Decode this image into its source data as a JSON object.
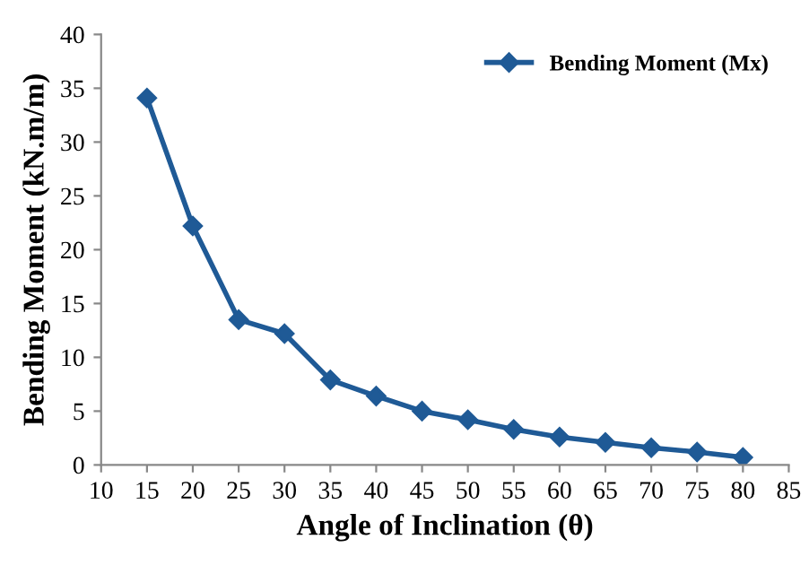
{
  "chart_data": {
    "type": "line",
    "xlabel": "Angle of Inclination (θ)",
    "ylabel": "Bending Moment (kN.m/m)",
    "x": [
      15,
      20,
      25,
      30,
      35,
      40,
      45,
      50,
      55,
      60,
      65,
      70,
      75,
      80
    ],
    "series": [
      {
        "name": "Bending Moment (Mx)",
        "color": "#1f5a96",
        "values": [
          34.1,
          22.2,
          13.5,
          12.2,
          7.9,
          6.4,
          5.0,
          4.2,
          3.3,
          2.6,
          2.1,
          1.6,
          1.2,
          0.7
        ]
      }
    ],
    "xlim": [
      10,
      85
    ],
    "xticks": [
      10,
      15,
      20,
      25,
      30,
      35,
      40,
      45,
      50,
      55,
      60,
      65,
      70,
      75,
      80,
      85
    ],
    "ylim": [
      0,
      40
    ],
    "yticks": [
      0,
      5,
      10,
      15,
      20,
      25,
      30,
      35,
      40
    ],
    "legend": "top right",
    "marker": "diamond",
    "line_style": "solid",
    "grid": false
  }
}
